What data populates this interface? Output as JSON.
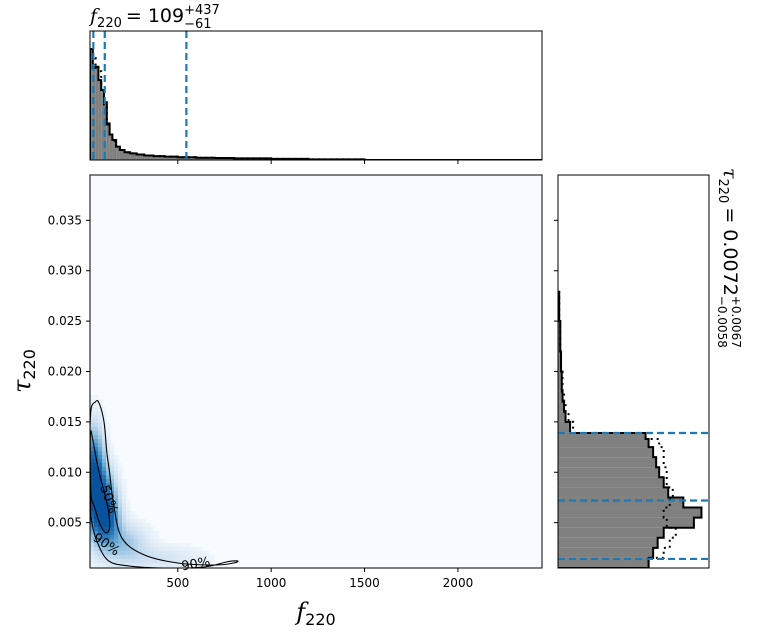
{
  "chart_data": [
    {
      "type": "heatmap",
      "name": "joint posterior",
      "xlabel_symbol": "f",
      "xlabel_sub": "220",
      "ylabel_symbol": "τ",
      "ylabel_sub": "220",
      "xlim": [
        30,
        2450
      ],
      "ylim": [
        0.0005,
        0.0395
      ],
      "xticks": [
        500,
        1000,
        1500,
        2000
      ],
      "xtick_labels": [
        "500",
        "1000",
        "1500",
        "2000"
      ],
      "yticks": [
        0.005,
        0.01,
        0.015,
        0.02,
        0.025,
        0.03,
        0.035
      ],
      "ytick_labels": [
        "0.005",
        "0.010",
        "0.015",
        "0.020",
        "0.025",
        "0.030",
        "0.035"
      ],
      "colormap": "Blues",
      "background_color": "#f7fbff",
      "peak_color": "#1f77b4",
      "density_blobs": [
        {
          "x": 50,
          "y": 0.0095,
          "sx": 35,
          "sy": 0.0028,
          "w": 1.0
        },
        {
          "x": 95,
          "y": 0.007,
          "sx": 45,
          "sy": 0.002,
          "w": 0.85
        },
        {
          "x": 125,
          "y": 0.005,
          "sx": 45,
          "sy": 0.0015,
          "w": 0.55
        },
        {
          "x": 210,
          "y": 0.003,
          "sx": 80,
          "sy": 0.0012,
          "w": 0.25
        },
        {
          "x": 380,
          "y": 0.0015,
          "sx": 160,
          "sy": 0.0008,
          "w": 0.1
        }
      ],
      "contours": [
        {
          "level_label": "50%",
          "points": [
            [
              32,
              0.0138
            ],
            [
              45,
              0.0132
            ],
            [
              65,
              0.0112
            ],
            [
              85,
              0.0095
            ],
            [
              110,
              0.0078
            ],
            [
              130,
              0.006
            ],
            [
              135,
              0.0045
            ],
            [
              115,
              0.004
            ],
            [
              85,
              0.0048
            ],
            [
              55,
              0.0065
            ],
            [
              35,
              0.008
            ]
          ]
        },
        {
          "level_label": "90%",
          "points": [
            [
              32,
              0.0155
            ],
            [
              60,
              0.017
            ],
            [
              80,
              0.0168
            ],
            [
              105,
              0.015
            ],
            [
              120,
              0.012
            ],
            [
              135,
              0.01
            ],
            [
              155,
              0.007
            ],
            [
              200,
              0.0035
            ],
            [
              320,
              0.0018
            ],
            [
              500,
              0.001
            ],
            [
              700,
              0.0008
            ],
            [
              800,
              0.001
            ],
            [
              820,
              0.0012
            ],
            [
              760,
              0.0011
            ],
            [
              640,
              0.0006
            ],
            [
              420,
              0.0005
            ],
            [
              240,
              0.0007
            ],
            [
              130,
              0.0012
            ],
            [
              70,
              0.003
            ],
            [
              40,
              0.005
            ],
            [
              32,
              0.007
            ]
          ]
        }
      ],
      "contour_labels": [
        {
          "text": "50%",
          "x": 110,
          "y": 0.0072,
          "angle": 70
        },
        {
          "text": "90%",
          "x": 105,
          "y": 0.0025,
          "angle": 35
        },
        {
          "text": "90%",
          "x": 600,
          "y": 0.0005,
          "angle": -10
        }
      ]
    },
    {
      "type": "bar",
      "name": "f_220 marginal",
      "title_symbol": "f",
      "title_sub": "220",
      "title_value": "= 109",
      "title_sup": "+437",
      "title_subscript": "−61",
      "xlim": [
        30,
        2450
      ],
      "bin_edges": [
        30,
        45,
        60,
        75,
        90,
        105,
        120,
        135,
        150,
        170,
        190,
        215,
        245,
        280,
        320,
        370,
        430,
        500,
        600,
        700,
        800,
        1000,
        1200,
        1500,
        2450
      ],
      "counts": [
        1.0,
        0.83,
        0.84,
        0.72,
        0.63,
        0.52,
        0.32,
        0.23,
        0.18,
        0.12,
        0.09,
        0.07,
        0.06,
        0.05,
        0.04,
        0.035,
        0.03,
        0.025,
        0.02,
        0.018,
        0.015,
        0.01,
        0.006,
        0.0
      ],
      "dotted_counts": [
        0.95,
        0.92,
        0.85,
        0.8,
        0.62,
        0.5,
        0.33,
        0.22,
        0.17,
        0.12,
        0.09,
        0.07,
        0.06,
        0.05,
        0.04,
        0.035,
        0.03,
        0.025,
        0.02,
        0.018,
        0.015,
        0.01,
        0.006,
        0.0
      ],
      "quantile_lines": [
        48,
        109,
        546
      ],
      "fill_color": "#808080",
      "line_color": "#1f77b4"
    },
    {
      "type": "bar",
      "name": "tau_220 marginal",
      "orientation": "horizontal",
      "title_symbol": "τ",
      "title_sub": "220",
      "title_value": "= 0.0072",
      "title_sup": "+0.0067",
      "title_subscript": "−0.0058",
      "ylim": [
        0.0005,
        0.0395
      ],
      "bin_edges": [
        0.0005,
        0.0015,
        0.0025,
        0.0035,
        0.0045,
        0.0055,
        0.0065,
        0.0075,
        0.0085,
        0.0095,
        0.0105,
        0.0115,
        0.0125,
        0.0133,
        0.0139,
        0.015,
        0.016,
        0.017,
        0.018,
        0.02,
        0.022,
        0.025,
        0.028
      ],
      "counts": [
        0.6,
        0.63,
        0.66,
        0.7,
        0.9,
        0.95,
        0.83,
        0.73,
        0.7,
        0.67,
        0.65,
        0.63,
        0.6,
        0.58,
        0.08,
        0.05,
        0.04,
        0.03,
        0.025,
        0.02,
        0.015,
        0.008
      ],
      "dotted_counts": [
        0.6,
        0.7,
        0.74,
        0.78,
        0.72,
        0.7,
        0.74,
        0.76,
        0.72,
        0.72,
        0.7,
        0.7,
        0.67,
        0.62,
        0.1,
        0.07,
        0.05,
        0.04,
        0.03,
        0.02,
        0.015,
        0.008
      ],
      "quantile_lines": [
        0.0014,
        0.0072,
        0.0139
      ],
      "fill_color": "#808080",
      "line_color": "#1f77b4"
    }
  ]
}
